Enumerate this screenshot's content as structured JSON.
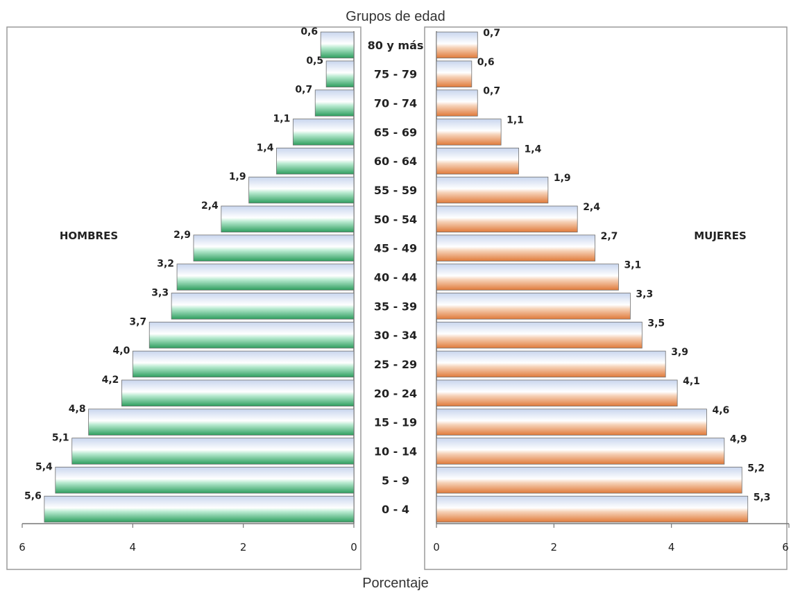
{
  "chart_data": {
    "type": "bar",
    "title": "Grupos de edad",
    "xlabel": "Porcentaje",
    "categories": [
      "0 - 4",
      "5 - 9",
      "10 - 14",
      "15 - 19",
      "20 - 24",
      "25 - 29",
      "30 - 34",
      "35 - 39",
      "40 - 44",
      "45 - 49",
      "50 - 54",
      "55 - 59",
      "60 - 64",
      "65 - 69",
      "70 - 74",
      "75 - 79",
      "80 y más"
    ],
    "series": [
      {
        "name": "HOMBRES",
        "color": "#2e9e5e",
        "values": [
          5.6,
          5.4,
          5.1,
          4.8,
          4.2,
          4.0,
          3.7,
          3.3,
          3.2,
          2.9,
          2.4,
          1.9,
          1.4,
          1.1,
          0.7,
          0.5,
          0.6
        ],
        "labels": [
          "5,6",
          "5,4",
          "5,1",
          "4,8",
          "4,2",
          "4,0",
          "3,7",
          "3,3",
          "3,2",
          "2,9",
          "2,4",
          "1,9",
          "1,4",
          "1,1",
          "0,7",
          "0,5",
          "0,6"
        ]
      },
      {
        "name": "MUJERES",
        "color": "#e07a3a",
        "values": [
          5.3,
          5.2,
          4.9,
          4.6,
          4.1,
          3.9,
          3.5,
          3.3,
          3.1,
          2.7,
          2.4,
          1.9,
          1.4,
          1.1,
          0.7,
          0.6,
          0.7
        ],
        "labels": [
          "5,3",
          "5,2",
          "4,9",
          "4,6",
          "4,1",
          "3,9",
          "3,5",
          "3,3",
          "3,1",
          "2,7",
          "2,4",
          "1,9",
          "1,4",
          "1,1",
          "0,7",
          "0,6",
          "0,7"
        ]
      }
    ],
    "xlim": [
      0,
      6
    ],
    "xticks": [
      "0",
      "2",
      "4",
      "6"
    ],
    "grid": false,
    "legend": "none"
  }
}
